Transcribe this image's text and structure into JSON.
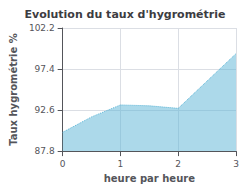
{
  "chart_data": {
    "type": "area",
    "title": "Evolution du taux d'hygrométrie",
    "xlabel": "heure par heure",
    "ylabel": "Taux hygrométrie %",
    "x": [
      0,
      0.5,
      1.0,
      1.5,
      2.0,
      3.0
    ],
    "values": [
      90.0,
      91.8,
      93.2,
      93.1,
      92.8,
      99.2
    ],
    "xlim": [
      0,
      3
    ],
    "ylim": [
      87.8,
      102.2
    ],
    "xticks": [
      0,
      1,
      2,
      3
    ],
    "yticks": [
      87.8,
      92.6,
      97.4,
      102.2
    ],
    "grid": true,
    "color": "#5ab4d6",
    "line_style": "dotted"
  }
}
